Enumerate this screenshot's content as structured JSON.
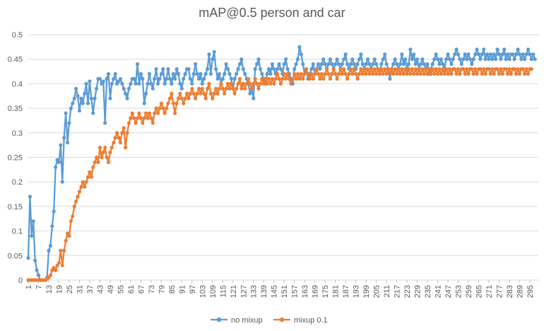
{
  "chart_data": {
    "type": "line",
    "title": "mAP@0.5 person and car",
    "xlabel": "",
    "ylabel": "",
    "ylim": [
      0,
      0.5
    ],
    "y_ticks": [
      "0",
      "0.05",
      "0.1",
      "0.15",
      "0.2",
      "0.25",
      "0.3",
      "0.35",
      "0.4",
      "0.45",
      "0.5"
    ],
    "x_range": [
      1,
      300
    ],
    "x_tick_labels": [
      "1",
      "7",
      "13",
      "19",
      "25",
      "31",
      "37",
      "43",
      "49",
      "55",
      "61",
      "67",
      "73",
      "79",
      "85",
      "91",
      "97",
      "103",
      "109",
      "115",
      "121",
      "127",
      "133",
      "139",
      "145",
      "151",
      "157",
      "163",
      "169",
      "175",
      "181",
      "187",
      "193",
      "199",
      "205",
      "211",
      "217",
      "223",
      "229",
      "235",
      "241",
      "247",
      "253",
      "259",
      "265",
      "271",
      "277",
      "283",
      "289",
      "295"
    ],
    "grid": "horizontal",
    "legend_position": "bottom",
    "series": [
      {
        "name": "no mixup",
        "color": "#5B9BD5",
        "values": [
          0.045,
          0.17,
          0.09,
          0.12,
          0.04,
          0.02,
          0.01,
          0.0,
          0.0,
          0.0,
          0.0,
          0.005,
          0.06,
          0.07,
          0.11,
          0.14,
          0.23,
          0.245,
          0.24,
          0.275,
          0.2,
          0.29,
          0.34,
          0.28,
          0.32,
          0.35,
          0.36,
          0.37,
          0.39,
          0.375,
          0.345,
          0.37,
          0.36,
          0.38,
          0.4,
          0.36,
          0.405,
          0.37,
          0.34,
          0.37,
          0.39,
          0.41,
          0.41,
          0.4,
          0.405,
          0.32,
          0.41,
          0.42,
          0.37,
          0.4,
          0.41,
          0.42,
          0.4,
          0.405,
          0.41,
          0.4,
          0.39,
          0.38,
          0.37,
          0.39,
          0.4,
          0.41,
          0.41,
          0.4,
          0.44,
          0.4,
          0.42,
          0.41,
          0.36,
          0.38,
          0.4,
          0.42,
          0.4,
          0.39,
          0.41,
          0.43,
          0.4,
          0.41,
          0.42,
          0.43,
          0.4,
          0.41,
          0.43,
          0.41,
          0.4,
          0.42,
          0.41,
          0.43,
          0.42,
          0.4,
          0.39,
          0.41,
          0.42,
          0.43,
          0.43,
          0.41,
          0.4,
          0.42,
          0.44,
          0.42,
          0.41,
          0.42,
          0.4,
          0.41,
          0.42,
          0.43,
          0.46,
          0.42,
          0.45,
          0.465,
          0.43,
          0.41,
          0.42,
          0.4,
          0.41,
          0.42,
          0.44,
          0.43,
          0.42,
          0.41,
          0.39,
          0.41,
          0.42,
          0.43,
          0.44,
          0.45,
          0.43,
          0.42,
          0.41,
          0.4,
          0.38,
          0.39,
          0.37,
          0.43,
          0.44,
          0.45,
          0.43,
          0.42,
          0.41,
          0.4,
          0.42,
          0.43,
          0.42,
          0.44,
          0.43,
          0.42,
          0.43,
          0.44,
          0.43,
          0.42,
          0.44,
          0.45,
          0.43,
          0.42,
          0.41,
          0.4,
          0.43,
          0.44,
          0.45,
          0.475,
          0.46,
          0.44,
          0.42,
          0.43,
          0.41,
          0.42,
          0.43,
          0.44,
          0.42,
          0.43,
          0.44,
          0.43,
          0.44,
          0.45,
          0.44,
          0.43,
          0.44,
          0.45,
          0.44,
          0.43,
          0.44,
          0.45,
          0.44,
          0.43,
          0.44,
          0.45,
          0.46,
          0.44,
          0.43,
          0.44,
          0.45,
          0.44,
          0.43,
          0.44,
          0.45,
          0.46,
          0.44,
          0.43,
          0.44,
          0.45,
          0.44,
          0.43,
          0.44,
          0.45,
          0.44,
          0.43,
          0.42,
          0.44,
          0.45,
          0.46,
          0.44,
          0.43,
          0.41,
          0.43,
          0.44,
          0.45,
          0.44,
          0.43,
          0.44,
          0.46,
          0.44,
          0.45,
          0.43,
          0.44,
          0.47,
          0.45,
          0.46,
          0.44,
          0.45,
          0.43,
          0.44,
          0.45,
          0.44,
          0.43,
          0.44,
          0.42,
          0.43,
          0.44,
          0.45,
          0.46,
          0.45,
          0.44,
          0.45,
          0.44,
          0.43,
          0.45,
          0.46,
          0.45,
          0.44,
          0.45,
          0.46,
          0.47,
          0.46,
          0.45,
          0.44,
          0.45,
          0.46,
          0.45,
          0.46,
          0.45,
          0.44,
          0.45,
          0.46,
          0.47,
          0.46,
          0.45,
          0.46,
          0.47,
          0.45,
          0.46,
          0.45,
          0.46,
          0.45,
          0.46,
          0.45,
          0.47,
          0.46,
          0.45,
          0.46,
          0.47,
          0.45,
          0.46,
          0.45,
          0.46,
          0.46,
          0.45,
          0.46,
          0.47,
          0.46,
          0.45,
          0.46,
          0.45,
          0.46,
          0.47,
          0.46,
          0.45,
          0.46,
          0.45
        ]
      },
      {
        "name": "mixup 0.1",
        "color": "#ED7D31",
        "values": [
          0.0,
          0.0,
          0.0,
          0.0,
          0.0,
          0.0,
          0.0,
          0.0,
          0.0,
          0.0,
          0.0,
          0.002,
          0.005,
          0.01,
          0.02,
          0.025,
          0.02,
          0.03,
          0.035,
          0.06,
          0.03,
          0.06,
          0.08,
          0.095,
          0.09,
          0.12,
          0.13,
          0.15,
          0.16,
          0.17,
          0.18,
          0.19,
          0.2,
          0.19,
          0.2,
          0.21,
          0.22,
          0.21,
          0.23,
          0.24,
          0.25,
          0.24,
          0.27,
          0.25,
          0.26,
          0.27,
          0.25,
          0.24,
          0.26,
          0.27,
          0.28,
          0.29,
          0.3,
          0.29,
          0.28,
          0.3,
          0.31,
          0.27,
          0.3,
          0.32,
          0.33,
          0.34,
          0.33,
          0.32,
          0.33,
          0.34,
          0.33,
          0.32,
          0.33,
          0.34,
          0.33,
          0.34,
          0.33,
          0.32,
          0.34,
          0.35,
          0.34,
          0.35,
          0.36,
          0.35,
          0.34,
          0.35,
          0.36,
          0.37,
          0.38,
          0.36,
          0.34,
          0.36,
          0.37,
          0.38,
          0.37,
          0.36,
          0.37,
          0.38,
          0.37,
          0.38,
          0.39,
          0.38,
          0.37,
          0.38,
          0.39,
          0.38,
          0.39,
          0.38,
          0.37,
          0.39,
          0.4,
          0.38,
          0.37,
          0.38,
          0.39,
          0.38,
          0.39,
          0.4,
          0.39,
          0.38,
          0.39,
          0.4,
          0.39,
          0.4,
          0.39,
          0.38,
          0.39,
          0.4,
          0.41,
          0.39,
          0.4,
          0.39,
          0.4,
          0.41,
          0.4,
          0.39,
          0.4,
          0.41,
          0.4,
          0.39,
          0.4,
          0.41,
          0.4,
          0.41,
          0.4,
          0.41,
          0.4,
          0.41,
          0.4,
          0.41,
          0.42,
          0.41,
          0.4,
          0.41,
          0.42,
          0.41,
          0.42,
          0.41,
          0.4,
          0.41,
          0.42,
          0.41,
          0.42,
          0.41,
          0.42,
          0.41,
          0.42,
          0.43,
          0.42,
          0.41,
          0.42,
          0.41,
          0.42,
          0.43,
          0.42,
          0.41,
          0.42,
          0.41,
          0.42,
          0.43,
          0.42,
          0.41,
          0.42,
          0.43,
          0.42,
          0.41,
          0.42,
          0.43,
          0.42,
          0.43,
          0.42,
          0.41,
          0.42,
          0.43,
          0.42,
          0.43,
          0.42,
          0.41,
          0.42,
          0.43,
          0.42,
          0.43,
          0.42,
          0.43,
          0.42,
          0.43,
          0.42,
          0.43,
          0.42,
          0.43,
          0.42,
          0.43,
          0.42,
          0.43,
          0.42,
          0.43,
          0.42,
          0.43,
          0.42,
          0.43,
          0.42,
          0.43,
          0.42,
          0.43,
          0.42,
          0.43,
          0.42,
          0.43,
          0.42,
          0.43,
          0.42,
          0.43,
          0.42,
          0.43,
          0.42,
          0.43,
          0.42,
          0.43,
          0.42,
          0.43,
          0.42,
          0.43,
          0.42,
          0.43,
          0.42,
          0.43,
          0.42,
          0.43,
          0.42,
          0.43,
          0.42,
          0.43,
          0.42,
          0.43,
          0.43,
          0.42,
          0.43,
          0.42,
          0.43,
          0.43,
          0.42,
          0.43,
          0.42,
          0.43,
          0.43,
          0.42,
          0.43,
          0.42,
          0.43,
          0.43,
          0.42,
          0.43,
          0.42,
          0.43,
          0.43,
          0.42,
          0.43,
          0.42,
          0.43,
          0.43,
          0.42,
          0.43,
          0.42,
          0.43,
          0.43,
          0.42,
          0.43,
          0.42,
          0.43,
          0.43,
          0.42,
          0.43,
          0.42,
          0.43,
          0.43,
          0.42,
          0.43,
          0.42,
          0.43,
          0.43
        ]
      }
    ]
  }
}
